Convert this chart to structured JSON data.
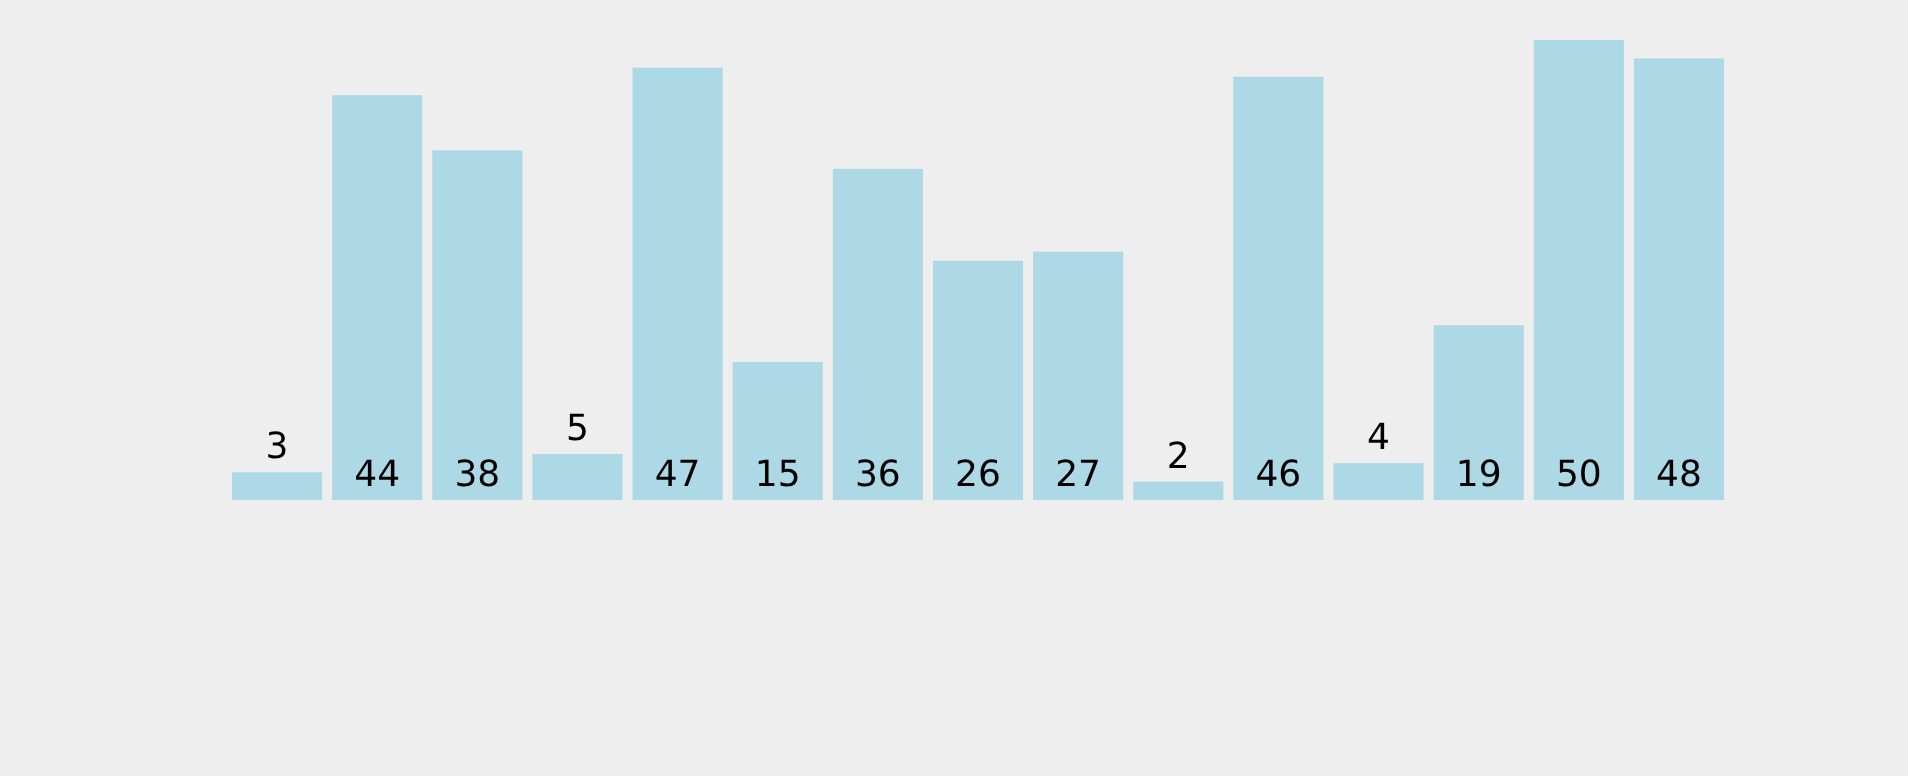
{
  "chart_data": {
    "type": "bar",
    "categories": [
      null,
      null,
      null,
      null,
      null,
      null,
      null,
      null,
      null,
      null,
      null,
      null,
      null,
      null,
      null
    ],
    "values": [
      3,
      44,
      38,
      5,
      47,
      15,
      36,
      26,
      27,
      2,
      46,
      4,
      19,
      50,
      48
    ],
    "color": "#add8e6",
    "data_labels": true
  }
}
